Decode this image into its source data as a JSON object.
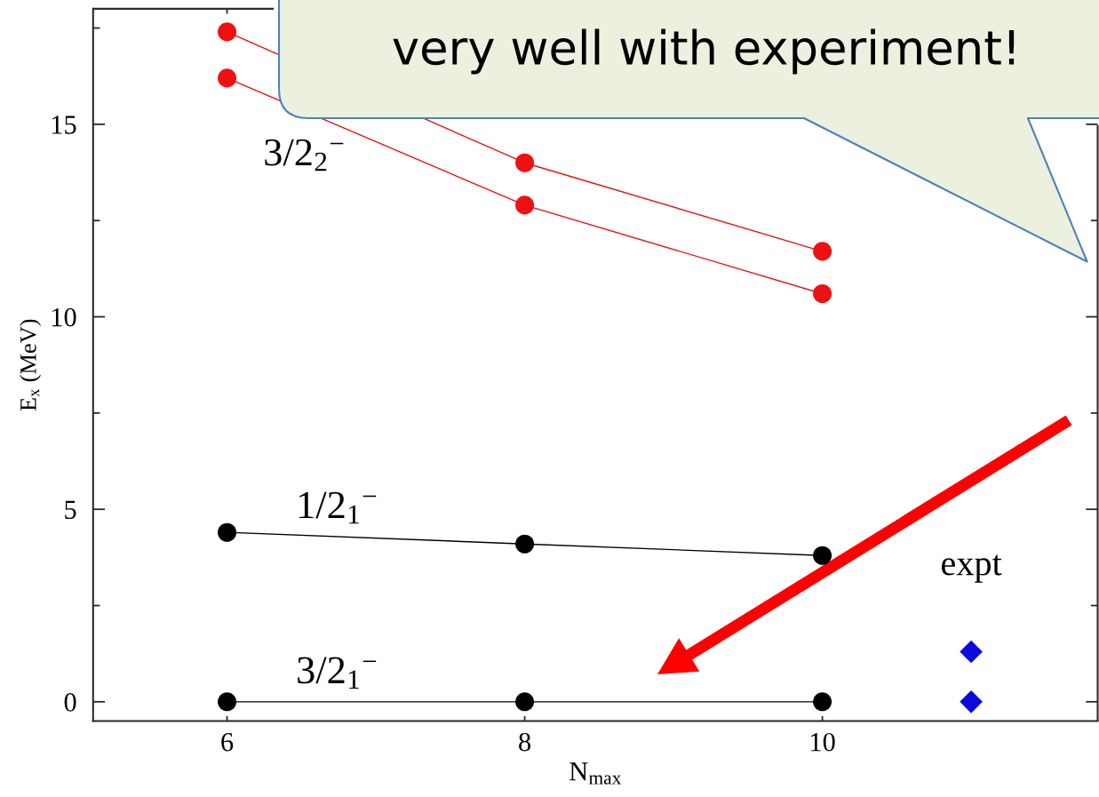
{
  "chart_data": {
    "type": "line",
    "xlabel": "N$_{max}$",
    "ylabel": "E$_{x}$ (MeV)",
    "x": [
      6,
      8,
      10
    ],
    "series": [
      {
        "color": "#ee1111",
        "values": [
          17.4,
          14.0,
          11.7
        ]
      },
      {
        "name": "3/2$_{2}$$^{−}$",
        "color": "#ee1111",
        "values": [
          16.2,
          12.9,
          10.6
        ]
      },
      {
        "name": "1/2$_{1}$$^{−}$",
        "color": "#000000",
        "values": [
          4.4,
          4.1,
          3.8
        ]
      },
      {
        "name": "3/2$_{1}$$^{−}$",
        "color": "#000000",
        "values": [
          0,
          0,
          0
        ]
      },
      {
        "name": "expt",
        "type": "scatter",
        "color": "#0a0adc",
        "x": [
          11,
          11
        ],
        "values": [
          1.3,
          0
        ],
        "marker": "diamond"
      }
    ],
    "xlim": [
      5.1,
      11.85
    ],
    "ylim": [
      -0.5,
      18
    ],
    "xticks": [
      6,
      8,
      10
    ],
    "yticks": [
      0,
      {
        "value": 2.5,
        "label": null
      },
      5,
      {
        "value": 7.5,
        "label": null
      },
      10,
      {
        "value": 12.5,
        "label": null
      },
      15,
      {
        "value": 17.5,
        "label": null
      }
    ],
    "marker": "circle",
    "line_style": "solid",
    "annotations": [
      "very well with experiment!"
    ]
  }
}
